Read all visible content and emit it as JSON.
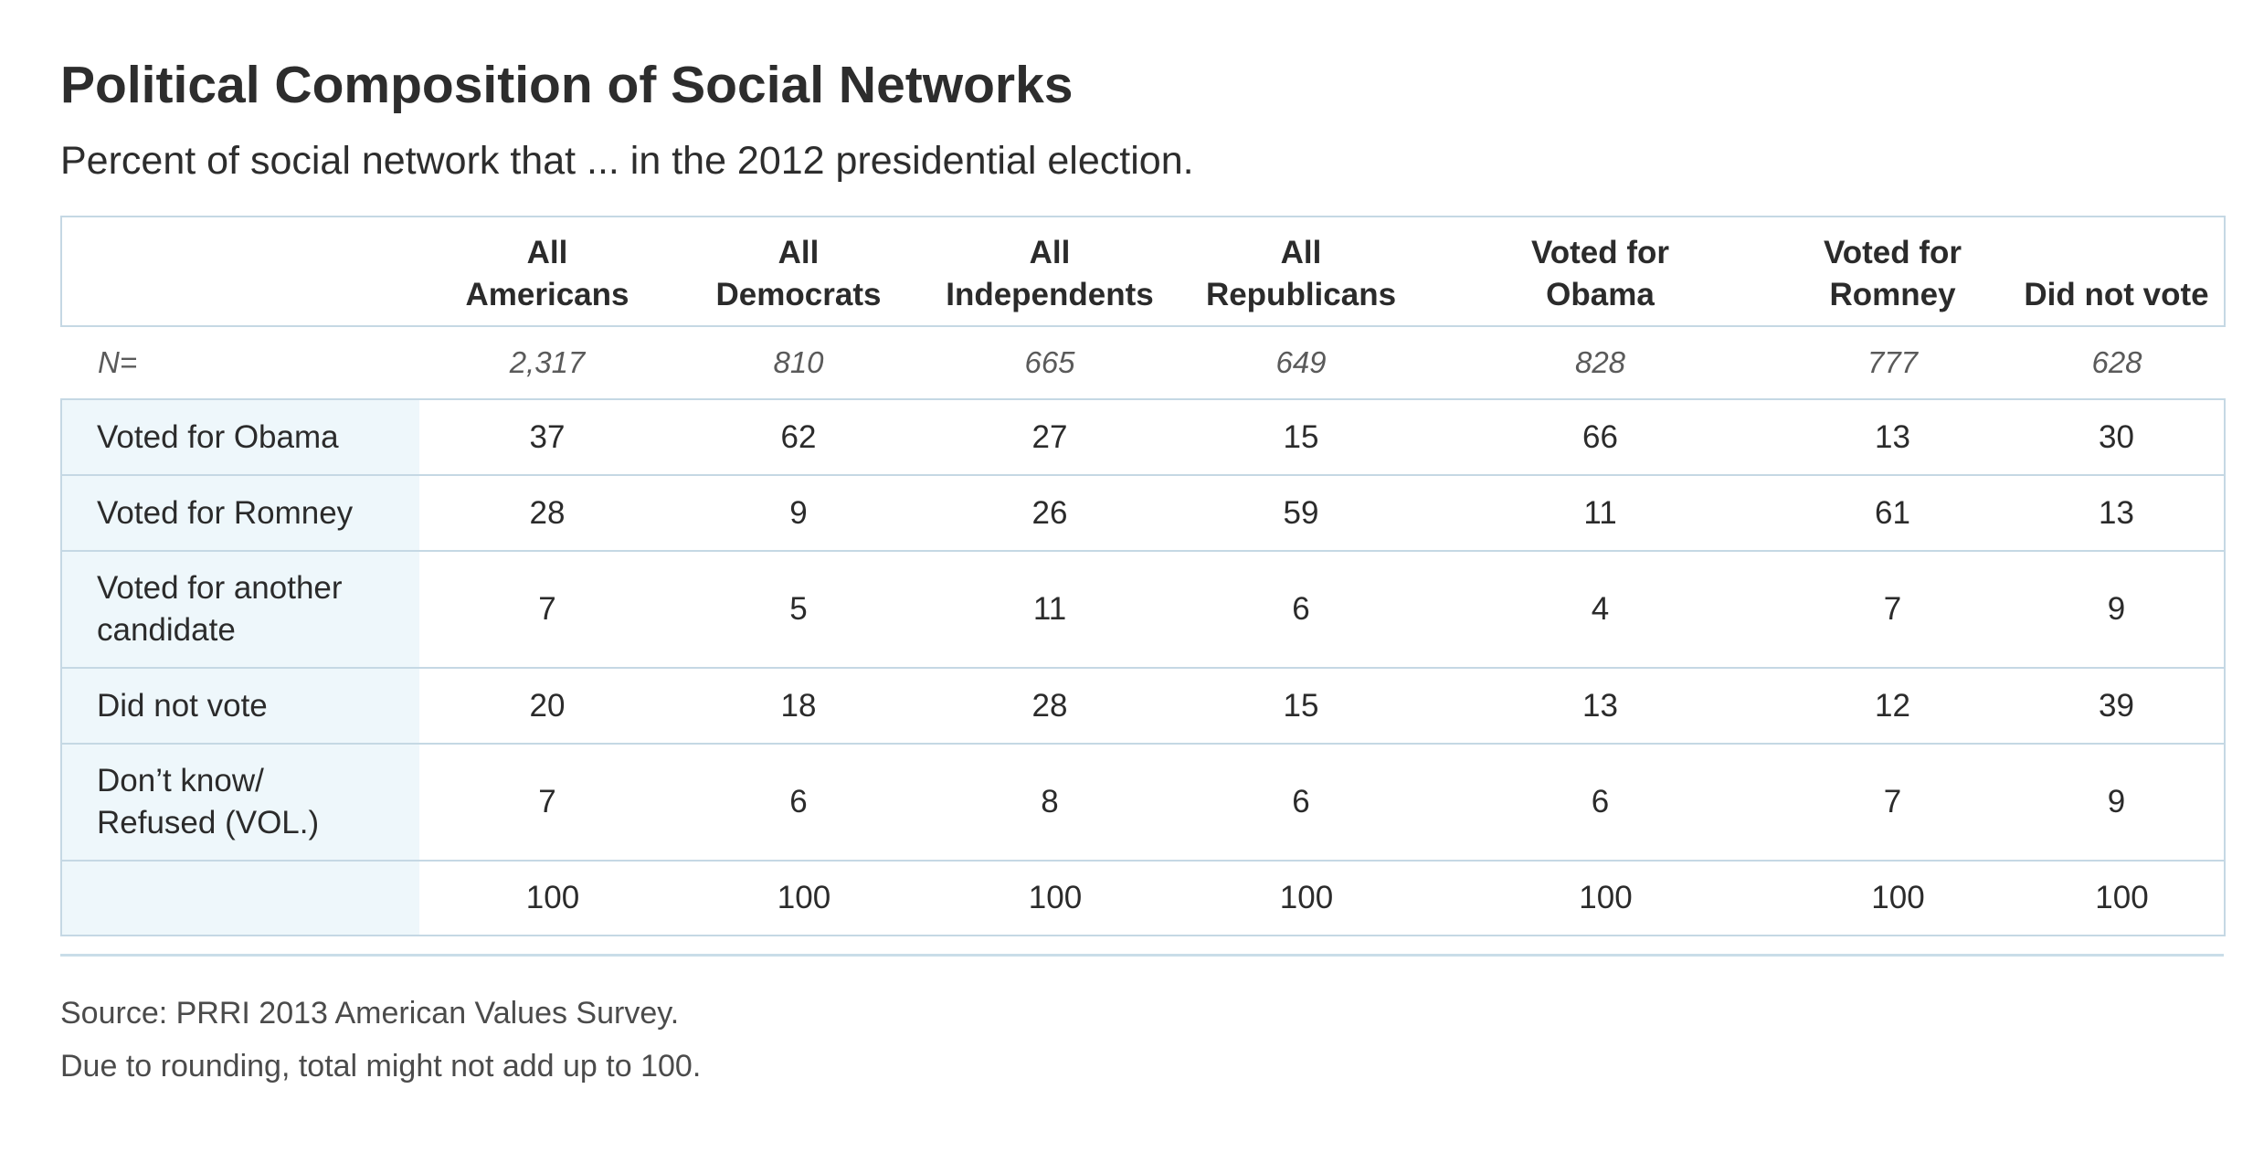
{
  "chart_data": {
    "type": "table",
    "title": "Political Composition of Social Networks",
    "subtitle": "Percent of social network that ... in the 2012 presidential election.",
    "columns": [
      "All\nAmericans",
      "All\nDemocrats",
      "All\nIndependents",
      "All\nRepublicans",
      "Voted for\nObama",
      "Voted for\nRomney",
      "Did not vote"
    ],
    "n_label": "N=",
    "n_values": [
      "2,317",
      "810",
      "665",
      "649",
      "828",
      "777",
      "628"
    ],
    "rows": [
      {
        "label": "Voted for Obama",
        "values": [
          37,
          62,
          27,
          15,
          66,
          13,
          30
        ]
      },
      {
        "label": "Voted for Romney",
        "values": [
          28,
          9,
          26,
          59,
          11,
          61,
          13
        ]
      },
      {
        "label": "Voted for another\ncandidate",
        "values": [
          7,
          5,
          11,
          6,
          4,
          7,
          9
        ]
      },
      {
        "label": "Did not vote",
        "values": [
          20,
          18,
          28,
          15,
          13,
          12,
          39
        ]
      },
      {
        "label": "Don’t know/\nRefused (VOL.)",
        "values": [
          7,
          6,
          8,
          6,
          6,
          7,
          9
        ]
      }
    ],
    "totals": {
      "label": "",
      "values": [
        100,
        100,
        100,
        100,
        100,
        100,
        100
      ]
    },
    "notes": [
      "Source: PRRI 2013 American Values Survey.",
      "Due to rounding, total might not add up to 100."
    ]
  }
}
